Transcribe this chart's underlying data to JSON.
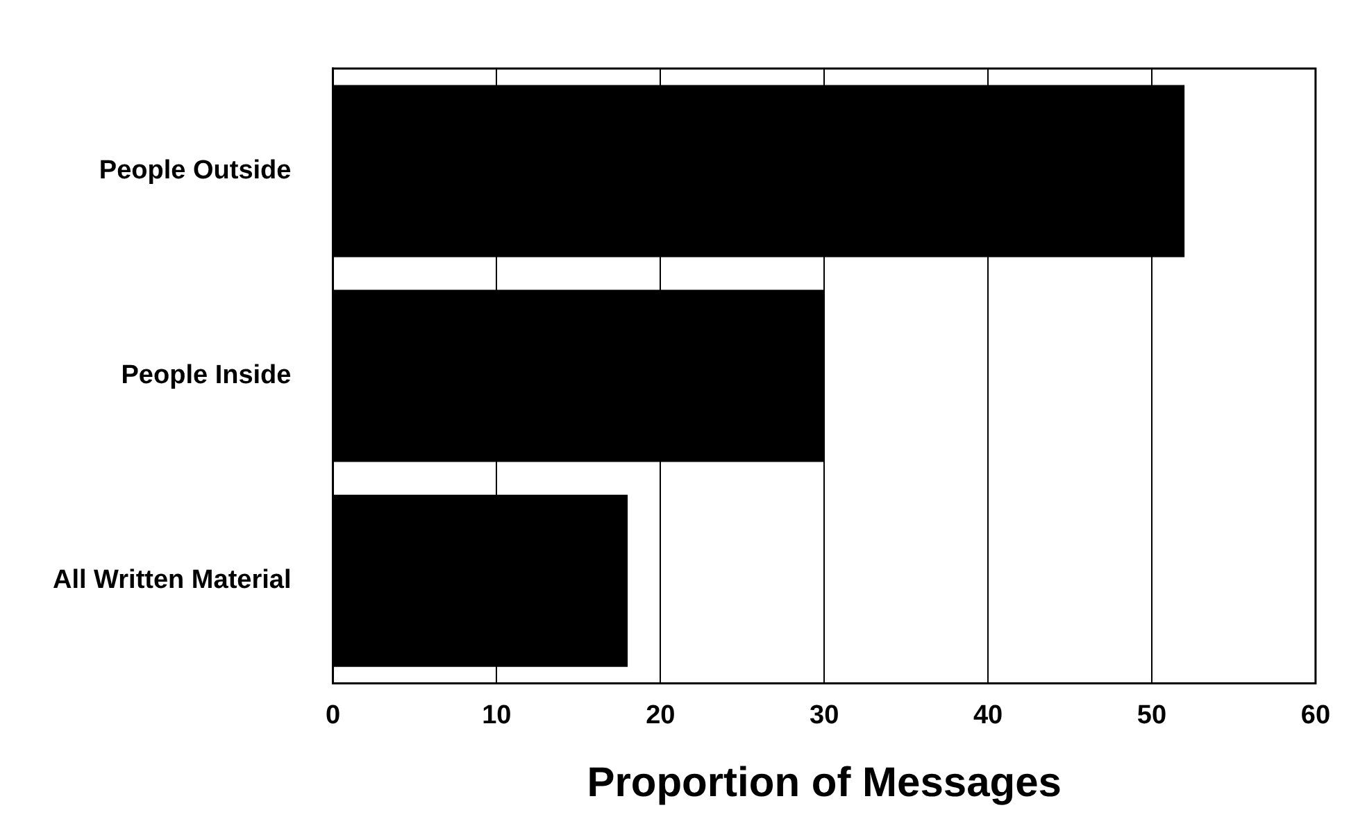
{
  "chart_data": {
    "type": "bar",
    "orientation": "horizontal",
    "xlabel": "Proportion of Messages",
    "categories": [
      "People Outside",
      "People Inside",
      "All Written Material"
    ],
    "values": [
      52,
      30,
      18
    ],
    "color": "#000000",
    "xlim": [
      0,
      60
    ],
    "xticks": [
      0,
      10,
      20,
      30,
      40,
      50,
      60
    ],
    "grid": "x",
    "legend": false
  }
}
